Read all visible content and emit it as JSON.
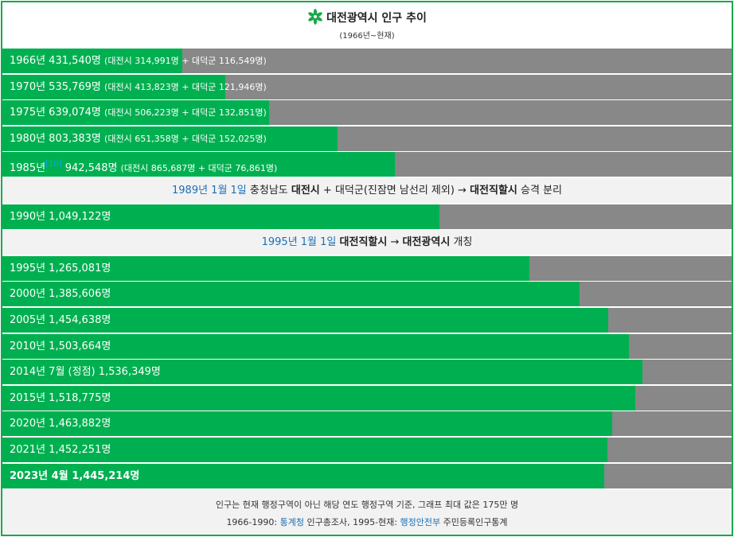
{
  "title": "대전광역시 인구 추이",
  "subtitle": "(1966년~현재)",
  "colors": {
    "fill": "#00b050",
    "track": "#888888",
    "frame": "#1aa84a",
    "link": "#1a6fb5",
    "note_bg": "#f2f2f2"
  },
  "icon": "daejeon-emblem-icon",
  "chart_data": {
    "type": "bar",
    "orientation": "horizontal",
    "xlim": [
      0,
      1750000
    ],
    "categories": [
      "1966년",
      "1970년",
      "1975년",
      "1980년",
      "1985년",
      "1990년",
      "1995년",
      "2000년",
      "2005년",
      "2010년",
      "2014년 7월 (정점)",
      "2015년",
      "2020년",
      "2021년",
      "2023년 4월"
    ],
    "values": [
      431540,
      535769,
      639074,
      803383,
      942548,
      1049122,
      1265081,
      1385606,
      1454638,
      1503664,
      1536349,
      1518775,
      1463882,
      1452251,
      1445214
    ]
  },
  "rows": [
    {
      "kind": "bar",
      "main": "1966년 431,540명",
      "detail": "(대전시 314,991명 + 대덕군 116,549명)",
      "value": 431540
    },
    {
      "kind": "bar",
      "main": "1970년 535,769명",
      "detail": "(대전시 413,823명 + 대덕군 121,946명)",
      "value": 535769
    },
    {
      "kind": "bar",
      "main": "1975년 639,074명",
      "detail": "(대전시 506,223명 + 대덕군 132,851명)",
      "value": 639074
    },
    {
      "kind": "bar",
      "main": "1980년 803,383명",
      "detail": "(대전시 651,358명 + 대덕군 152,025명)",
      "value": 803383
    },
    {
      "kind": "bar",
      "main_a": "1985년",
      "sup": "[10]",
      "main": " 942,548명",
      "detail": "(대전시 865,687명 + 대덕군 76,861명)",
      "value": 942548
    },
    {
      "kind": "note",
      "link": "1989년 1월 1일",
      "t1": " 충청남도 ",
      "b1": "대전시",
      "t2": " + 대덕군(진잠면 남선리 제외) → ",
      "b2": "대전직할시",
      "t3": " 승격 분리"
    },
    {
      "kind": "bar",
      "main": "1990년 1,049,122명",
      "value": 1049122
    },
    {
      "kind": "note",
      "link": "1995년 1월 1일",
      "t1": " ",
      "b1": "대전직할시",
      "t2": " → ",
      "b2": "대전광역시",
      "t3": " 개칭"
    },
    {
      "kind": "bar",
      "main": "1995년 1,265,081명",
      "value": 1265081
    },
    {
      "kind": "bar",
      "main": "2000년 1,385,606명",
      "value": 1385606
    },
    {
      "kind": "bar",
      "main": "2005년 1,454,638명",
      "value": 1454638
    },
    {
      "kind": "bar",
      "main": "2010년 1,503,664명",
      "value": 1503664
    },
    {
      "kind": "bar",
      "main": "2014년 7월 (정점) 1,536,349명",
      "value": 1536349
    },
    {
      "kind": "bar",
      "main": "2015년 1,518,775명",
      "value": 1518775
    },
    {
      "kind": "bar",
      "main": "2020년 1,463,882명",
      "value": 1463882
    },
    {
      "kind": "bar",
      "main": "2021년 1,452,251명",
      "value": 1452251
    },
    {
      "kind": "bar",
      "bold": true,
      "main": "2023년 4월 1,445,214명",
      "value": 1445214
    }
  ],
  "footer": {
    "line1": "인구는 현재 행정구역이 아닌 해당 연도 행정구역 기준, 그래프 최대 값은 175만 명",
    "line2_a": "1966-1990: ",
    "line2_link1": "통계청",
    "line2_b": " 인구총조사, 1995-현재: ",
    "line2_link2": "행정안전부",
    "line2_c": " 주민등록인구통계"
  }
}
